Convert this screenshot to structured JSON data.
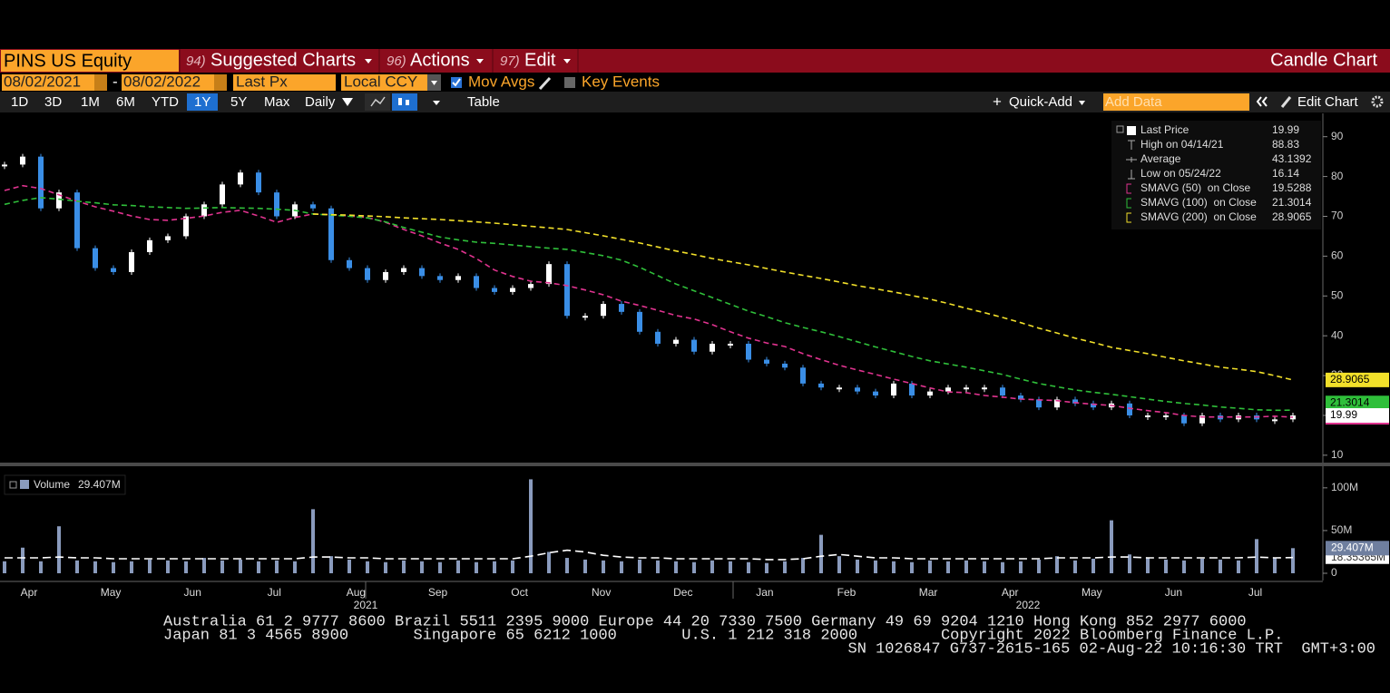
{
  "toolbar": {
    "ticker": "PINS US Equity",
    "menus": [
      {
        "num": "94)",
        "label": "Suggested Charts"
      },
      {
        "num": "96)",
        "label": "Actions"
      },
      {
        "num": "97)",
        "label": "Edit"
      }
    ],
    "chart_kind": "Candle Chart"
  },
  "controls": {
    "start_date": "08/02/2021",
    "date_separator": "-",
    "end_date": "08/02/2022",
    "price_field": "Last Px",
    "currency": "Local CCY",
    "mov_avgs": "Mov Avgs",
    "key_events": "Key Events"
  },
  "ranges": [
    "1D",
    "3D",
    "1M",
    "6M",
    "YTD",
    "1Y",
    "5Y",
    "Max"
  ],
  "selected_range": "1Y",
  "frequency": "Daily",
  "table": "Table",
  "quick_add": "Quick-Add",
  "add_data": "Add Data",
  "edit_chart": "Edit Chart",
  "chart_data": {
    "type": "candlestick",
    "ylim": [
      8.6,
      95.4
    ],
    "yticks": [
      10,
      20,
      30,
      40,
      50,
      60,
      70,
      80,
      90
    ],
    "months": [
      "Apr",
      "May",
      "Jun",
      "Jul",
      "Aug",
      "Sep",
      "Oct",
      "Nov",
      "Dec",
      "Jan",
      "Feb",
      "Mar",
      "Apr",
      "May",
      "Jun",
      "Jul"
    ],
    "years": [
      "2021",
      "2022"
    ],
    "series": [
      {
        "name": "Last Price",
        "up_color": "#ffffff",
        "down_color": "#3a8ee6",
        "label": 19.99,
        "values": [
          83,
          85,
          72,
          76,
          62,
          57,
          56,
          61,
          64,
          65,
          70,
          73,
          78,
          81,
          76,
          70,
          73,
          72,
          59,
          57,
          54,
          56,
          57,
          55,
          54,
          55,
          52,
          51,
          52,
          53,
          58,
          45,
          45,
          48,
          46,
          41,
          38,
          39,
          36,
          38,
          38,
          34,
          33,
          32,
          28,
          27,
          27,
          26,
          25,
          28,
          25,
          26,
          27,
          27,
          27,
          25,
          24,
          22,
          24,
          23,
          22,
          23,
          20,
          20,
          20,
          18,
          20,
          19,
          20,
          19,
          19,
          19.99
        ]
      },
      {
        "name": "SMAVG (50)  on Close",
        "color": "#e0338f",
        "label": 19.5288,
        "values": [
          76.5,
          77.7,
          77,
          75.4,
          73.8,
          72.4,
          71.3,
          70.1,
          69.2,
          69,
          69.5,
          70.1,
          71,
          71.5,
          70.1,
          68.5,
          69.7,
          70.6,
          70.4,
          70.1,
          69.7,
          68.5,
          66.7,
          65.1,
          63.3,
          61.7,
          59.4,
          56.5,
          54.9,
          53.7,
          53.3,
          52.6,
          51.5,
          50.3,
          48.7,
          47.6,
          46.4,
          45.1,
          44.2,
          42.8,
          41,
          39.4,
          38.2,
          37.3,
          35.5,
          34,
          32.6,
          31.4,
          30.3,
          29.1,
          28,
          26.9,
          25.9,
          25.7,
          25,
          24.6,
          24.1,
          23.9,
          23.7,
          23.2,
          22.8,
          22.5,
          21.8,
          21.2,
          20.7,
          20,
          19.6,
          19.6,
          19.6,
          19.6,
          19.8,
          19.5288
        ]
      },
      {
        "name": "SMAVG (100)  on Close",
        "color": "#2fbf3a",
        "label": 21.3014,
        "values": [
          73,
          74,
          74.7,
          74.3,
          73.8,
          73.4,
          72.9,
          72.7,
          72.4,
          72.2,
          72,
          72.1,
          72.2,
          72.1,
          72,
          71.8,
          71.5,
          70.6,
          70.3,
          70,
          69.6,
          68.6,
          67.2,
          66,
          64.8,
          64.1,
          63.5,
          63.2,
          62.8,
          62.4,
          62,
          61.7,
          60.9,
          60.1,
          59,
          57.2,
          55.1,
          53,
          51.3,
          49.6,
          47.9,
          46.2,
          44.8,
          43.3,
          42.1,
          41,
          39.8,
          38.5,
          37.2,
          36,
          34.8,
          33.7,
          32.9,
          32.1,
          31.2,
          30.3,
          29.1,
          28,
          27.2,
          26.4,
          25.8,
          25.3,
          24.7,
          24.1,
          23.5,
          23,
          22.6,
          22.1,
          21.8,
          21.4,
          21.3,
          21.3014
        ]
      },
      {
        "name": "SMAVG (200)  on Close",
        "color": "#f2e02a",
        "label": 28.9065,
        "values": [
          null,
          null,
          null,
          null,
          null,
          null,
          null,
          null,
          null,
          null,
          null,
          null,
          null,
          null,
          null,
          null,
          null,
          70.6,
          70.4,
          70.3,
          70.1,
          69.9,
          69.6,
          69.4,
          69.2,
          68.9,
          68.6,
          68.3,
          67.9,
          67.5,
          67.1,
          66.7,
          65.9,
          65.1,
          64.2,
          63.3,
          62.3,
          61.3,
          60.4,
          59.4,
          58.6,
          57.8,
          56.9,
          56,
          55.2,
          54.4,
          53.5,
          52.6,
          51.8,
          51,
          50.1,
          49.2,
          48.1,
          46.9,
          45.8,
          44.6,
          43.3,
          41.9,
          40.7,
          39.4,
          38.3,
          37.1,
          36.3,
          35.5,
          34.6,
          33.7,
          32.9,
          32.1,
          31.6,
          31,
          30,
          28.9065
        ]
      }
    ],
    "stats": [
      {
        "name": "High on 04/14/21",
        "value": 88.83
      },
      {
        "name": "Average",
        "value": 43.1392
      },
      {
        "name": "Low on 05/24/22",
        "value": 16.14
      }
    ],
    "volume": {
      "name": "Volume",
      "value_label": "29.407M",
      "color": "#8a9bbd",
      "ylim": [
        0,
        120
      ],
      "yticks": [
        0,
        {
          "value": 50,
          "label": "50M"
        },
        {
          "value": 100,
          "label": "100M"
        }
      ],
      "values": [
        14,
        30,
        14,
        55,
        15,
        14,
        13,
        14,
        16,
        15,
        14,
        18,
        15,
        16,
        14,
        15,
        14,
        75,
        20,
        16,
        14,
        13,
        15,
        14,
        13,
        15,
        13,
        14,
        15,
        110,
        25,
        18,
        16,
        15,
        14,
        16,
        15,
        14,
        13,
        15,
        14,
        13,
        12,
        14,
        18,
        45,
        20,
        16,
        15,
        14,
        13,
        15,
        14,
        15,
        14,
        13,
        14,
        16,
        20,
        15,
        17,
        62,
        22,
        18,
        16,
        15,
        17,
        16,
        15,
        40,
        18,
        29.407
      ],
      "average_label": "18.35365M",
      "average": [
        18,
        18,
        18,
        19,
        18,
        18,
        17,
        17,
        17,
        17,
        17,
        17,
        17,
        17,
        17,
        17,
        17,
        19,
        19,
        18,
        18,
        17,
        17,
        17,
        17,
        17,
        17,
        17,
        17,
        20,
        24,
        27,
        25,
        21,
        19,
        18,
        18,
        17,
        17,
        17,
        17,
        17,
        16,
        16,
        17,
        20,
        22,
        20,
        18,
        18,
        17,
        17,
        17,
        17,
        17,
        17,
        17,
        17,
        18,
        18,
        18,
        19,
        19,
        18,
        18,
        18,
        18,
        18,
        18,
        19,
        18,
        18.35365
      ]
    }
  },
  "footer": [
    "Australia 61 2 9777 8600 Brazil 5511 2395 9000 Europe 44 20 7330 7500 Germany 49 69 9204 1210 Hong Kong 852 2977 6000",
    "Japan 81 3 4565 8900       Singapore 65 6212 1000       U.S. 1 212 318 2000         Copyright 2022 Bloomberg Finance L.P.",
    "SN 1026847 G737-2615-165 02-Aug-22 10:16:30 TRT  GMT+3:00"
  ]
}
